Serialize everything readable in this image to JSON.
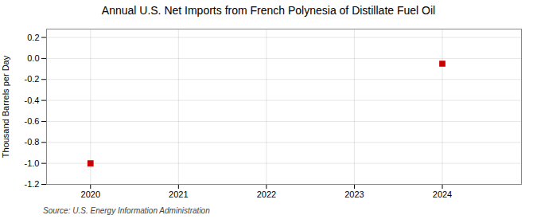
{
  "chart_data": {
    "type": "scatter",
    "title": "Annual U.S. Net Imports from French Polynesia of Distillate Fuel Oil",
    "ylabel": "Thousand Barrels per Day",
    "source": "Source: U.S. Energy Information Administration",
    "x": [
      2020,
      2024
    ],
    "values": [
      -1.0,
      -0.05
    ],
    "color": "#cc0000",
    "marker": "square",
    "xlim": [
      2019.5,
      2024.9
    ],
    "ylim": [
      -1.2,
      0.28
    ],
    "xticks": [
      2020,
      2021,
      2022,
      2023,
      2024
    ],
    "yticks": [
      0.2,
      {
        "value": 0.0,
        "label": "0.0"
      },
      -0.2,
      -0.4,
      -0.6,
      -0.8,
      {
        "value": -1.0,
        "label": "-1.0"
      },
      -1.2
    ],
    "grid": true
  }
}
